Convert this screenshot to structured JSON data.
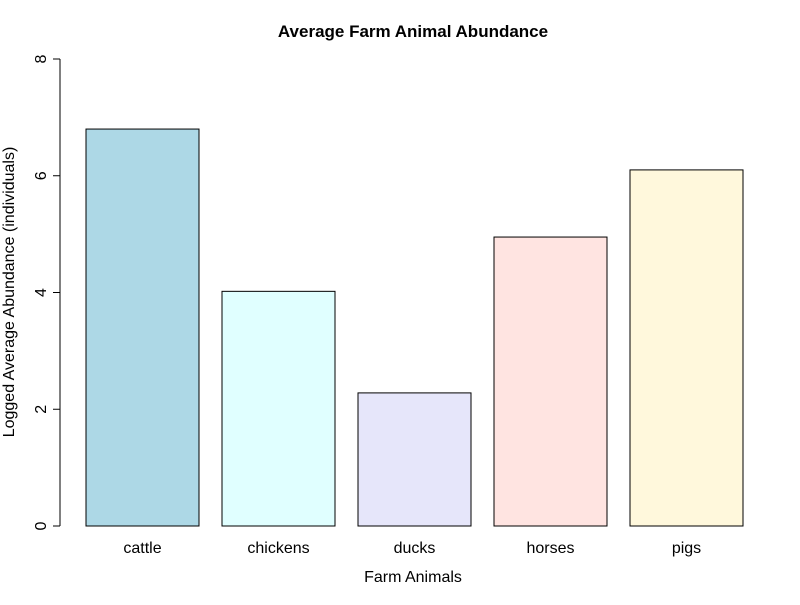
{
  "chart_data": {
    "type": "bar",
    "title": "Average Farm Animal Abundance",
    "xlabel": "Farm Animals",
    "ylabel": "Logged Average Abundance (individuals)",
    "categories": [
      "cattle",
      "chickens",
      "ducks",
      "horses",
      "pigs"
    ],
    "values": [
      6.8,
      4.02,
      2.28,
      4.95,
      6.1
    ],
    "colors": [
      "#add8e6",
      "#e0ffff",
      "#e6e6fa",
      "#ffe4e1",
      "#fff8dc"
    ],
    "ylim": [
      0,
      8
    ],
    "yticks": [
      0,
      2,
      4,
      6,
      8
    ],
    "grid": false,
    "legend": "none"
  }
}
